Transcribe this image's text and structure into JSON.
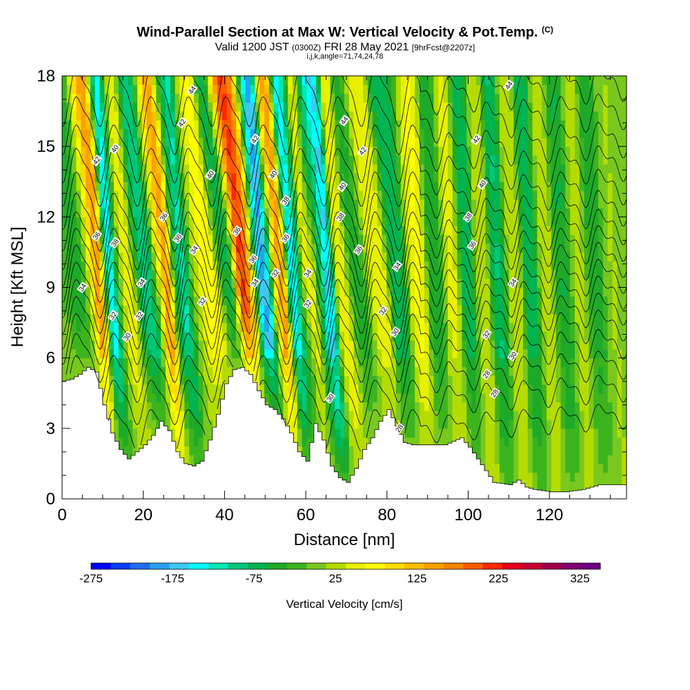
{
  "title": {
    "main": "Wind-Parallel Section at Max W: Vertical Velocity & Pot.Temp.",
    "copyright": "(C)",
    "valid_prefix": "Valid 1200 JST",
    "utc": "(0300Z)",
    "valid_suffix": "FRI 28 May 2021",
    "forecast": "[9hrFcst@2207z]",
    "grid": "i,j,k,angle=71,74,24,78"
  },
  "chart_data": {
    "type": "heatmap",
    "xlabel": "Distance [nm]",
    "ylabel": "Height [Kft MSL]",
    "xlim": [
      0,
      139
    ],
    "ylim": [
      0,
      18
    ],
    "x_ticks": [
      "0",
      "20",
      "40",
      "60",
      "80",
      "100",
      "120"
    ],
    "y_ticks": [
      "0",
      "3",
      "6",
      "9",
      "12",
      "15",
      "18"
    ],
    "colorbar": {
      "label": "Vertical Velocity [cm/s]",
      "min": -275,
      "max": 350,
      "step": 25,
      "tick_labels": [
        "-275",
        "-175",
        "-75",
        "25",
        "125",
        "225",
        "325"
      ],
      "colors": [
        "#0000ff",
        "#0a3cf5",
        "#1e6ef0",
        "#28a0f0",
        "#3cc8f0",
        "#00ffff",
        "#00e6b4",
        "#00c878",
        "#00b450",
        "#1eaa28",
        "#3cb41e",
        "#78c81e",
        "#b4dc00",
        "#e6f000",
        "#ffff00",
        "#ffdc00",
        "#ffbe00",
        "#ffa000",
        "#ff8200",
        "#ff5a00",
        "#ff2800",
        "#e6001e",
        "#c80032",
        "#a0004b",
        "#82006e",
        "#6e0082"
      ]
    },
    "w_bands": [
      {
        "x": 7,
        "w": -60
      },
      {
        "x": 9,
        "w": 40
      },
      {
        "x": 10.5,
        "w": 180
      },
      {
        "x": 12,
        "w": 270
      },
      {
        "x": 14,
        "w": -100
      },
      {
        "x": 15.5,
        "w": -220
      },
      {
        "x": 18,
        "w": 20
      },
      {
        "x": 20.5,
        "w": 110
      },
      {
        "x": 23,
        "w": -60
      },
      {
        "x": 25,
        "w": -170
      },
      {
        "x": 27,
        "w": 60
      },
      {
        "x": 29,
        "w": 240
      },
      {
        "x": 32,
        "w": -40
      },
      {
        "x": 34,
        "w": -150
      },
      {
        "x": 37,
        "w": 40
      },
      {
        "x": 40,
        "w": 130
      },
      {
        "x": 43,
        "w": -90
      },
      {
        "x": 46.5,
        "w": 290
      },
      {
        "x": 48.5,
        "w": 180
      },
      {
        "x": 51,
        "w": -160
      },
      {
        "x": 53,
        "w": -250
      },
      {
        "x": 55.5,
        "w": 100
      },
      {
        "x": 57.5,
        "w": 270
      },
      {
        "x": 60,
        "w": -220
      },
      {
        "x": 62,
        "w": -100
      },
      {
        "x": 64.5,
        "w": 120
      },
      {
        "x": 67,
        "w": -60
      },
      {
        "x": 69.5,
        "w": -200
      },
      {
        "x": 73,
        "w": 90
      },
      {
        "x": 77,
        "w": -40
      },
      {
        "x": 81,
        "w": 80
      },
      {
        "x": 86,
        "w": -70
      },
      {
        "x": 90,
        "w": 90
      },
      {
        "x": 94,
        "w": -60
      },
      {
        "x": 98,
        "w": 70
      },
      {
        "x": 102,
        "w": -80
      },
      {
        "x": 106,
        "w": 60
      },
      {
        "x": 110,
        "w": -90
      },
      {
        "x": 114,
        "w": 60
      },
      {
        "x": 118,
        "w": -80
      },
      {
        "x": 122,
        "w": 50
      },
      {
        "x": 126,
        "w": -60
      },
      {
        "x": 130,
        "w": 40
      },
      {
        "x": 134,
        "w": -50
      },
      {
        "x": 138,
        "w": 30
      }
    ],
    "terrain": [
      [
        0,
        5.0
      ],
      [
        2,
        5.1
      ],
      [
        4,
        5.3
      ],
      [
        6,
        5.6
      ],
      [
        8,
        5.4
      ],
      [
        10,
        4.0
      ],
      [
        12,
        2.8
      ],
      [
        14,
        2.1
      ],
      [
        16,
        1.7
      ],
      [
        18,
        2.0
      ],
      [
        20,
        2.3
      ],
      [
        22,
        2.7
      ],
      [
        24,
        3.3
      ],
      [
        26,
        2.9
      ],
      [
        28,
        2.0
      ],
      [
        30,
        1.5
      ],
      [
        32,
        1.4
      ],
      [
        34,
        1.6
      ],
      [
        36,
        2.5
      ],
      [
        38,
        3.6
      ],
      [
        40,
        4.9
      ],
      [
        42,
        5.5
      ],
      [
        44,
        5.6
      ],
      [
        46,
        5.3
      ],
      [
        48,
        4.6
      ],
      [
        50,
        4.0
      ],
      [
        52,
        3.8
      ],
      [
        54,
        3.4
      ],
      [
        56,
        2.8
      ],
      [
        58,
        2.0
      ],
      [
        60,
        1.6
      ],
      [
        62,
        3.2
      ],
      [
        64,
        2.5
      ],
      [
        66,
        1.4
      ],
      [
        68,
        0.9
      ],
      [
        70,
        0.7
      ],
      [
        72,
        1.3
      ],
      [
        74,
        2.1
      ],
      [
        76,
        2.6
      ],
      [
        78,
        3.3
      ],
      [
        80,
        3.8
      ],
      [
        82,
        3.1
      ],
      [
        84,
        2.4
      ],
      [
        86,
        2.3
      ],
      [
        90,
        2.3
      ],
      [
        94,
        2.3
      ],
      [
        98,
        2.6
      ],
      [
        100,
        2.2
      ],
      [
        102,
        1.7
      ],
      [
        104,
        1.2
      ],
      [
        106,
        0.7
      ],
      [
        110,
        0.6
      ],
      [
        112,
        0.8
      ],
      [
        114,
        0.5
      ],
      [
        116,
        0.4
      ],
      [
        120,
        0.3
      ],
      [
        124,
        0.3
      ],
      [
        128,
        0.4
      ],
      [
        132,
        0.6
      ],
      [
        136,
        0.6
      ],
      [
        139,
        0.6
      ]
    ],
    "isentropes": [
      {
        "theta": 28,
        "base": 3.0
      },
      {
        "theta": 29,
        "base": 4.2
      },
      {
        "theta": 30,
        "base": 5.2
      },
      {
        "theta": 31,
        "base": 6.1
      },
      {
        "theta": 32,
        "base": 6.9
      },
      {
        "theta": 33,
        "base": 7.6
      },
      {
        "theta": 34,
        "base": 8.3
      },
      {
        "theta": 35,
        "base": 9.0
      },
      {
        "theta": 36,
        "base": 9.7
      },
      {
        "theta": 37,
        "base": 10.4
      },
      {
        "theta": 38,
        "base": 11.1
      },
      {
        "theta": 39,
        "base": 11.9
      },
      {
        "theta": 40,
        "base": 12.8
      },
      {
        "theta": 41,
        "base": 13.8
      },
      {
        "theta": 42,
        "base": 14.8
      },
      {
        "theta": 43,
        "base": 16.0
      },
      {
        "theta": 44,
        "base": 17.2
      }
    ],
    "contour_labels": [
      {
        "x": 5,
        "y": 9.0,
        "t": "34"
      },
      {
        "x": 8.5,
        "y": 11.2,
        "t": "36"
      },
      {
        "x": 8.5,
        "y": 14.4,
        "t": "42"
      },
      {
        "x": 13,
        "y": 14.9,
        "t": "40"
      },
      {
        "x": 13,
        "y": 10.9,
        "t": "38"
      },
      {
        "x": 12.5,
        "y": 7.8,
        "t": "32"
      },
      {
        "x": 16,
        "y": 6.9,
        "t": "30"
      },
      {
        "x": 19,
        "y": 7.8,
        "t": "32"
      },
      {
        "x": 19.5,
        "y": 9.2,
        "t": "34"
      },
      {
        "x": 25,
        "y": 12.0,
        "t": "36"
      },
      {
        "x": 28.5,
        "y": 11.1,
        "t": "36"
      },
      {
        "x": 29.5,
        "y": 16.0,
        "t": "42"
      },
      {
        "x": 32,
        "y": 17.4,
        "t": "44"
      },
      {
        "x": 32.5,
        "y": 10.6,
        "t": "34"
      },
      {
        "x": 34.5,
        "y": 8.4,
        "t": "32"
      },
      {
        "x": 36.5,
        "y": 13.8,
        "t": "40"
      },
      {
        "x": 43,
        "y": 11.4,
        "t": "36"
      },
      {
        "x": 47.5,
        "y": 15.3,
        "t": "42"
      },
      {
        "x": 47,
        "y": 10.2,
        "t": "36"
      },
      {
        "x": 47.5,
        "y": 9.2,
        "t": "34"
      },
      {
        "x": 52,
        "y": 13.8,
        "t": "40"
      },
      {
        "x": 52.5,
        "y": 9.6,
        "t": "32"
      },
      {
        "x": 55,
        "y": 12.7,
        "t": "38"
      },
      {
        "x": 55,
        "y": 11.1,
        "t": "36"
      },
      {
        "x": 60.5,
        "y": 9.6,
        "t": "34"
      },
      {
        "x": 60.5,
        "y": 8.3,
        "t": "32"
      },
      {
        "x": 66,
        "y": 4.3,
        "t": "30"
      },
      {
        "x": 69.5,
        "y": 16.1,
        "t": "44"
      },
      {
        "x": 69,
        "y": 13.3,
        "t": "40"
      },
      {
        "x": 68.5,
        "y": 12.0,
        "t": "38"
      },
      {
        "x": 74,
        "y": 14.8,
        "t": "42"
      },
      {
        "x": 73,
        "y": 10.6,
        "t": "36"
      },
      {
        "x": 79,
        "y": 8.0,
        "t": "32"
      },
      {
        "x": 82.5,
        "y": 9.9,
        "t": "34"
      },
      {
        "x": 82,
        "y": 7.1,
        "t": "30"
      },
      {
        "x": 83,
        "y": 3.0,
        "t": "28"
      },
      {
        "x": 102,
        "y": 15.3,
        "t": "42"
      },
      {
        "x": 103.5,
        "y": 13.4,
        "t": "40"
      },
      {
        "x": 100,
        "y": 12.0,
        "t": "38"
      },
      {
        "x": 101,
        "y": 10.8,
        "t": "36"
      },
      {
        "x": 111,
        "y": 9.2,
        "t": "34"
      },
      {
        "x": 104.5,
        "y": 7.0,
        "t": "32"
      },
      {
        "x": 111,
        "y": 6.1,
        "t": "30"
      },
      {
        "x": 104.5,
        "y": 5.3,
        "t": "28"
      },
      {
        "x": 106.5,
        "y": 4.5,
        "t": "28"
      },
      {
        "x": 110,
        "y": 17.6,
        "t": "44"
      }
    ]
  }
}
